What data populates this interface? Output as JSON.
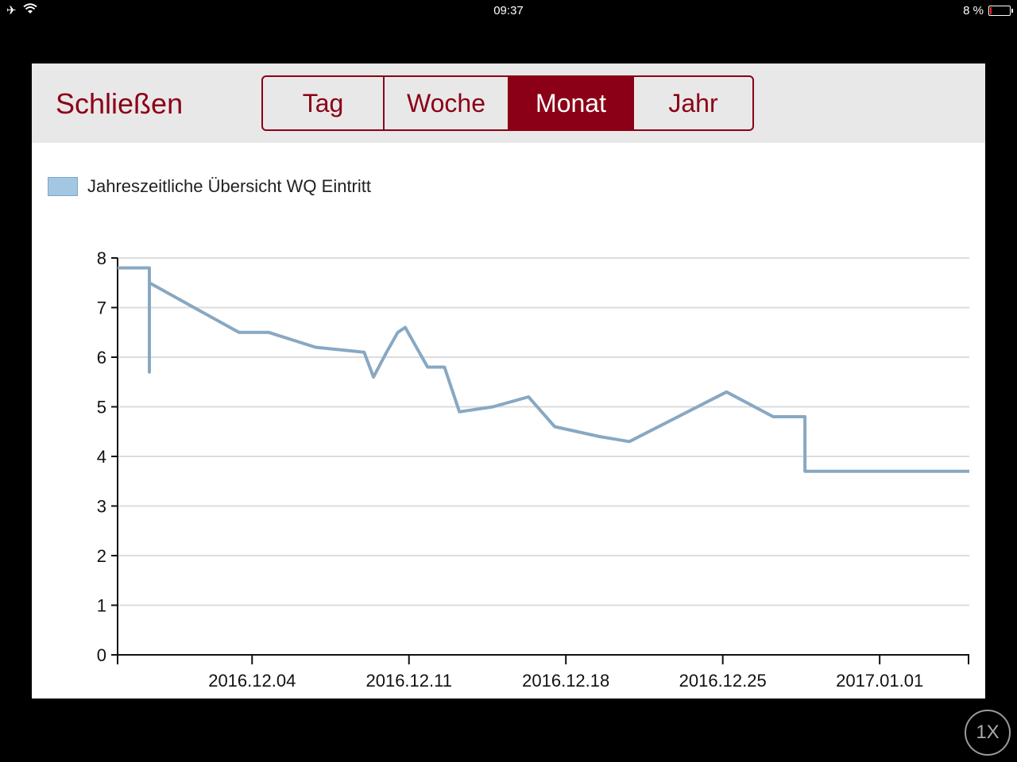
{
  "status_bar": {
    "time": "09:37",
    "battery_text": "8 %"
  },
  "toolbar": {
    "close_label": "Schließen",
    "segments": [
      {
        "label": "Tag",
        "active": false
      },
      {
        "label": "Woche",
        "active": false
      },
      {
        "label": "Monat",
        "active": true
      },
      {
        "label": "Jahr",
        "active": false
      }
    ]
  },
  "zoom_label": "1X",
  "colors": {
    "accent": "#8b0016",
    "series": "#88a8c2",
    "legend_swatch": "#a3c6e2"
  },
  "chart_data": {
    "type": "line",
    "legend": {
      "entries": [
        "Jahreszeitliche Übersicht WQ Eintritt"
      ],
      "position": "top-left"
    },
    "title": "",
    "xlabel": "",
    "ylabel": "",
    "ylim": [
      0,
      8
    ],
    "yticks": [
      0,
      1,
      2,
      3,
      4,
      5,
      6,
      7,
      8
    ],
    "xlim": [
      "2016-11-28",
      "2017-01-05"
    ],
    "xticks": [
      "2016.12.04",
      "2016.12.11",
      "2016.12.18",
      "2016.12.25",
      "2017.01.01"
    ],
    "grid": true,
    "series": [
      {
        "name": "Jahreszeitliche Übersicht WQ Eintritt",
        "points": [
          [
            "2016-11-28T00:00",
            7.8
          ],
          [
            "2016-11-29T10:00",
            7.8
          ],
          [
            "2016-11-29T10:00",
            5.7
          ],
          [
            "2016-11-29T10:00",
            7.5
          ],
          [
            "2016-12-03T10:00",
            6.5
          ],
          [
            "2016-12-04T18:00",
            6.5
          ],
          [
            "2016-12-06T20:00",
            6.2
          ],
          [
            "2016-12-09T00:00",
            6.1
          ],
          [
            "2016-12-09T10:00",
            5.6
          ],
          [
            "2016-12-10T00:00",
            6.1
          ],
          [
            "2016-12-10T12:00",
            6.5
          ],
          [
            "2016-12-10T20:00",
            6.6
          ],
          [
            "2016-12-11T20:00",
            5.8
          ],
          [
            "2016-12-12T14:00",
            5.8
          ],
          [
            "2016-12-13T06:00",
            4.9
          ],
          [
            "2016-12-14T18:00",
            5.0
          ],
          [
            "2016-12-16T08:00",
            5.2
          ],
          [
            "2016-12-17T12:00",
            4.6
          ],
          [
            "2016-12-19T12:00",
            4.4
          ],
          [
            "2016-12-20T20:00",
            4.3
          ],
          [
            "2016-12-25T04:00",
            5.3
          ],
          [
            "2016-12-27T06:00",
            4.8
          ],
          [
            "2016-12-28T16:00",
            4.8
          ],
          [
            "2016-12-28T16:00",
            3.7
          ],
          [
            "2017-01-05T00:00",
            3.7
          ]
        ]
      }
    ]
  }
}
